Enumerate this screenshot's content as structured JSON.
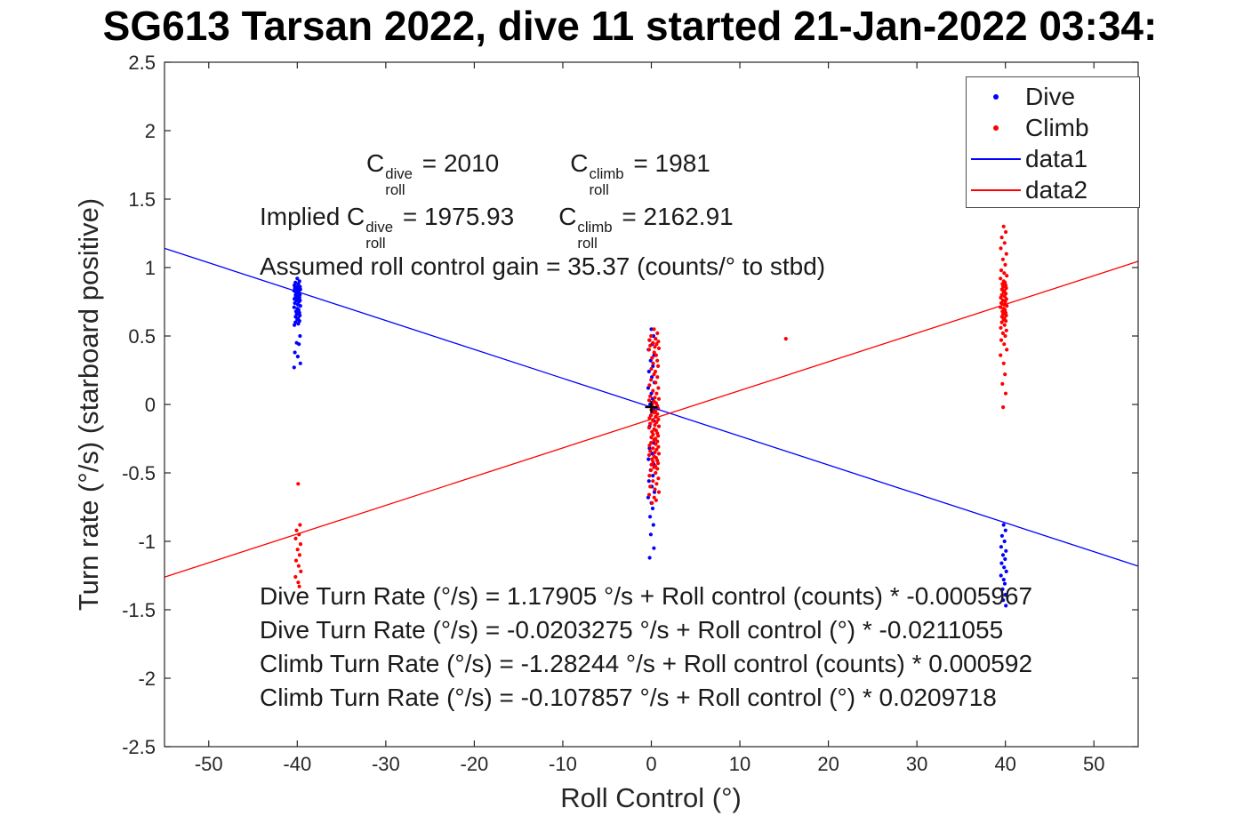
{
  "title": "SG613 Tarsan 2022, dive 11 started 21-Jan-2022 03:34:",
  "chart_data": {
    "type": "scatter",
    "title": "SG613 Tarsan 2022, dive 11 started 21-Jan-2022 03:34:",
    "xlabel": "Roll Control (°)",
    "ylabel": "Turn rate (°/s) (starboard positive)",
    "xlim": [
      -55,
      55
    ],
    "ylim": [
      -2.5,
      2.5
    ],
    "xticks": [
      -50,
      -40,
      -30,
      -20,
      -10,
      0,
      10,
      20,
      30,
      40,
      50
    ],
    "xtick_labels": [
      "-50",
      "-40",
      "-30",
      "-20",
      "-10",
      "0",
      "10",
      "20",
      "30",
      "40",
      "50"
    ],
    "yticks": [
      2.5,
      2,
      1.5,
      1,
      0.5,
      0,
      -0.5,
      -1,
      -1.5,
      -2,
      -2.5
    ],
    "ytick_labels": [
      "2.5",
      "2",
      "1.5",
      "1",
      "0.5",
      "0",
      "-0.5",
      "-1",
      "-1.5",
      "-2",
      "-2.5"
    ],
    "grid": false,
    "legend_position": "northeast",
    "axis_color": "#262626",
    "series": [
      {
        "name": "Dive",
        "type": "scatter",
        "color": "#0000ff",
        "clusters": [
          {
            "x": -40.0,
            "spread": 0.35,
            "y": [
              0.92,
              0.9,
              0.89,
              0.88,
              0.87,
              0.86,
              0.86,
              0.85,
              0.85,
              0.84,
              0.84,
              0.83,
              0.83,
              0.82,
              0.82,
              0.81,
              0.81,
              0.8,
              0.8,
              0.79,
              0.79,
              0.78,
              0.78,
              0.77,
              0.77,
              0.76,
              0.76,
              0.75,
              0.74,
              0.73,
              0.72,
              0.71,
              0.7,
              0.69,
              0.68,
              0.67,
              0.66,
              0.65,
              0.64,
              0.63,
              0.62,
              0.61,
              0.6,
              0.59,
              0.58,
              0.5,
              0.45,
              0.44,
              0.38,
              0.35,
              0.3,
              0.27
            ]
          },
          {
            "x": 0.0,
            "spread": 0.35,
            "y": [
              0.55,
              0.5,
              0.47,
              0.44,
              0.4,
              0.36,
              0.32,
              0.28,
              0.24,
              0.2,
              0.16,
              0.12,
              0.08,
              0.04,
              0,
              -0.04,
              -0.08,
              -0.12,
              -0.16,
              -0.2,
              -0.24,
              -0.28,
              -0.32,
              -0.36,
              -0.4,
              -0.44,
              -0.48,
              -0.52,
              -0.56,
              -0.6,
              -0.64,
              -0.68,
              -0.72,
              -0.76,
              -0.82,
              -0.88,
              -0.95,
              -1.05,
              -1.12
            ]
          },
          {
            "x": 39.8,
            "spread": 0.3,
            "y": [
              -0.88,
              -0.92,
              -0.96,
              -1.0,
              -1.04,
              -1.07,
              -1.1,
              -1.13,
              -1.16,
              -1.19,
              -1.22,
              -1.25,
              -1.28,
              -1.31,
              -1.35,
              -1.39,
              -1.43,
              -1.47
            ]
          }
        ]
      },
      {
        "name": "Climb",
        "type": "scatter",
        "color": "#ff0000",
        "clusters": [
          {
            "x": -39.9,
            "spread": 0.3,
            "y": [
              -0.58,
              -0.88,
              -0.92,
              -0.95,
              -0.98,
              -1.02,
              -1.06,
              -1.1,
              -1.14,
              -1.18,
              -1.22,
              -1.26,
              -1.3,
              -1.33
            ]
          },
          {
            "x": 0.3,
            "spread": 0.55,
            "y": [
              0.55,
              0.52,
              0.5,
              0.48,
              0.47,
              0.46,
              0.45,
              0.44,
              0.43,
              0.42,
              0.41,
              0.4,
              0.38,
              0.36,
              0.34,
              0.32,
              0.3,
              0.28,
              0.26,
              0.24,
              0.22,
              0.2,
              0.18,
              0.16,
              0.14,
              0.12,
              0.1,
              0.08,
              0.06,
              0.05,
              0.04,
              0.03,
              0.02,
              0.01,
              0,
              -0.01,
              -0.02,
              -0.03,
              -0.04,
              -0.05,
              -0.06,
              -0.07,
              -0.08,
              -0.09,
              -0.1,
              -0.11,
              -0.12,
              -0.13,
              -0.14,
              -0.15,
              -0.16,
              -0.17,
              -0.18,
              -0.19,
              -0.2,
              -0.21,
              -0.22,
              -0.23,
              -0.24,
              -0.25,
              -0.26,
              -0.27,
              -0.28,
              -0.29,
              -0.3,
              -0.31,
              -0.32,
              -0.33,
              -0.34,
              -0.35,
              -0.36,
              -0.37,
              -0.38,
              -0.39,
              -0.4,
              -0.41,
              -0.42,
              -0.43,
              -0.44,
              -0.45,
              -0.46,
              -0.47,
              -0.48,
              -0.5,
              -0.52,
              -0.54,
              -0.56,
              -0.58,
              -0.6,
              -0.62,
              -0.64,
              -0.66,
              -0.68,
              -0.7,
              -0.72
            ]
          },
          {
            "x": 39.8,
            "spread": 0.35,
            "y": [
              1.3,
              1.26,
              1.22,
              1.18,
              1.14,
              1.1,
              1.06,
              1.02,
              0.98,
              0.96,
              0.94,
              0.92,
              0.9,
              0.89,
              0.88,
              0.87,
              0.86,
              0.85,
              0.84,
              0.83,
              0.82,
              0.81,
              0.8,
              0.79,
              0.78,
              0.77,
              0.76,
              0.75,
              0.74,
              0.73,
              0.72,
              0.71,
              0.7,
              0.69,
              0.68,
              0.67,
              0.66,
              0.65,
              0.64,
              0.63,
              0.62,
              0.61,
              0.6,
              0.58,
              0.56,
              0.54,
              0.52,
              0.5,
              0.47,
              0.44,
              0.4,
              0.36,
              0.3,
              0.22,
              0.15,
              0.08,
              -0.02
            ]
          },
          {
            "x": 15.2,
            "spread": 0,
            "y": [
              0.48
            ]
          }
        ]
      },
      {
        "name": "data1",
        "type": "line",
        "color": "#0000ff",
        "intercept": -0.0203275,
        "slope": -0.0211055
      },
      {
        "name": "data2",
        "type": "line",
        "color": "#ff0000",
        "intercept": -0.107857,
        "slope": 0.0209718
      }
    ],
    "plus_marker": {
      "x": 0,
      "y": -0.02,
      "color": "#000000"
    }
  },
  "annotations": {
    "coeff": {
      "c1": "C",
      "sup1": "dive",
      "sub1": "roll",
      "eq1": " = 2010",
      "c2": "C",
      "sup2": "climb",
      "sub2": "roll",
      "eq2": " = 1981"
    },
    "implied": {
      "pre": "Implied C",
      "sup1": "dive",
      "sub1": "roll",
      "eq1": " = 1975.93",
      "c2": "C",
      "sup2": "climb",
      "sub2": "roll",
      "eq2": " = 2162.91"
    },
    "gain": "Assumed roll control gain = 35.37 (counts/° to stbd)",
    "equations": [
      "Dive Turn Rate (°/s) = 1.17905 °/s + Roll control (counts) * -0.0005967",
      "Dive Turn Rate (°/s) = -0.0203275 °/s + Roll control (°) * -0.0211055",
      "Climb Turn Rate (°/s) = -1.28244 °/s + Roll control (counts) * 0.000592",
      "Climb Turn Rate (°/s) = -0.107857 °/s + Roll control (°) * 0.0209718"
    ]
  },
  "legend": {
    "items": [
      {
        "label": "Dive",
        "marker": "dot",
        "color": "#0000ff"
      },
      {
        "label": "Climb",
        "marker": "dot",
        "color": "#ff0000"
      },
      {
        "label": "data1",
        "marker": "line",
        "color": "#0000ff"
      },
      {
        "label": "data2",
        "marker": "line",
        "color": "#ff0000"
      }
    ]
  }
}
